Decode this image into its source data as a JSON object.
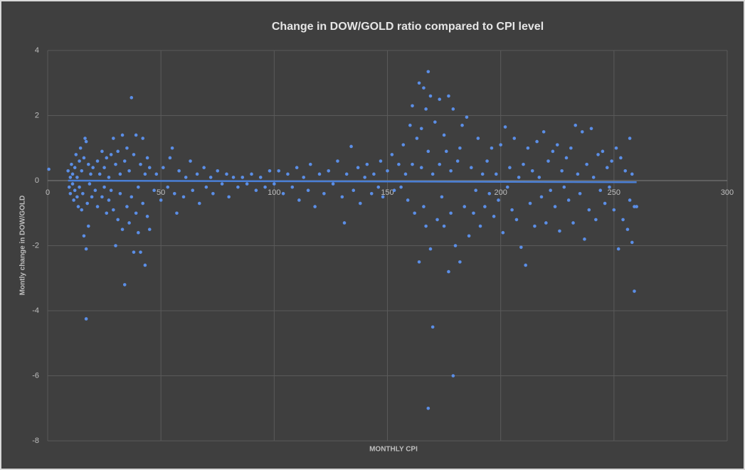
{
  "chart_data": {
    "type": "scatter",
    "title": "Change in DOW/GOLD ratio compared to CPI level",
    "xlabel": "MONTHLY CPI",
    "ylabel": "Montly change in DOW/GOLD",
    "xlim": [
      0,
      300
    ],
    "xticks": [
      0,
      50,
      100,
      150,
      200,
      250,
      300
    ],
    "ylim": [
      -8,
      4
    ],
    "yticks": [
      -8,
      -6,
      -4,
      -2,
      0,
      2,
      4
    ],
    "grid": true,
    "series": [
      {
        "color": "#5b8ee6",
        "x": [
          0.5,
          9,
          9.5,
          10,
          10,
          10.5,
          11,
          11,
          11.5,
          12,
          12,
          12.5,
          13,
          13,
          13.5,
          14,
          14,
          14.5,
          15,
          15,
          15.5,
          16,
          16,
          16.5,
          17,
          17,
          17,
          17.5,
          18,
          18,
          18.5,
          19,
          19.5,
          20,
          21,
          22,
          22,
          23,
          24,
          24,
          25,
          25,
          26,
          26,
          27,
          27,
          28,
          28,
          29,
          29,
          30,
          30,
          31,
          31,
          32,
          32,
          33,
          33,
          34,
          34,
          35,
          35,
          36,
          36,
          37,
          37,
          38,
          38,
          39,
          39,
          40,
          40,
          41,
          41,
          42,
          42,
          43,
          43,
          44,
          44,
          45,
          45,
          47,
          48,
          50,
          51,
          53,
          54,
          55,
          56,
          57,
          58,
          60,
          61,
          63,
          64,
          66,
          67,
          69,
          70,
          72,
          73,
          75,
          77,
          79,
          80,
          82,
          84,
          86,
          88,
          90,
          92,
          94,
          96,
          98,
          100,
          102,
          104,
          106,
          108,
          110,
          111,
          113,
          115,
          116,
          118,
          120,
          122,
          124,
          126,
          128,
          130,
          131,
          132,
          134,
          135,
          137,
          138,
          140,
          141,
          143,
          144,
          146,
          147,
          148,
          150,
          152,
          153,
          155,
          156,
          157,
          158,
          159,
          160,
          161,
          161,
          162,
          163,
          164,
          164,
          165,
          165,
          166,
          166,
          167,
          167,
          168,
          168,
          168,
          169,
          169,
          170,
          170,
          171,
          172,
          173,
          173,
          174,
          175,
          175,
          176,
          177,
          177,
          178,
          178,
          179,
          179,
          180,
          181,
          182,
          182,
          183,
          184,
          185,
          186,
          187,
          188,
          189,
          190,
          191,
          192,
          193,
          194,
          195,
          196,
          197,
          198,
          199,
          200,
          201,
          202,
          203,
          204,
          205,
          206,
          207,
          208,
          209,
          210,
          211,
          212,
          213,
          214,
          215,
          216,
          217,
          218,
          219,
          220,
          221,
          222,
          223,
          224,
          225,
          226,
          227,
          228,
          229,
          230,
          231,
          232,
          233,
          234,
          235,
          236,
          237,
          238,
          239,
          240,
          241,
          242,
          243,
          244,
          245,
          246,
          247,
          248,
          249,
          250,
          251,
          252,
          253,
          254,
          255,
          256,
          257,
          257,
          258,
          258,
          259,
          259,
          260
        ],
        "values": [
          0.35,
          0.3,
          -0.2,
          0.1,
          -0.4,
          0.5,
          -0.1,
          0.2,
          -0.6,
          0.4,
          -0.3,
          0.8,
          -0.5,
          0.1,
          -0.8,
          0.6,
          -0.2,
          1.0,
          -0.9,
          0.3,
          -0.4,
          0.7,
          -1.7,
          1.3,
          -2.1,
          -4.25,
          1.2,
          -0.7,
          0.5,
          -1.4,
          -0.1,
          0.2,
          -0.5,
          0.4,
          -0.3,
          0.6,
          -0.8,
          0.2,
          -0.5,
          0.9,
          -0.2,
          0.4,
          -1.0,
          0.7,
          0.1,
          -0.6,
          0.8,
          -0.3,
          1.3,
          -0.9,
          -2.0,
          0.5,
          -1.2,
          0.9,
          -0.4,
          0.2,
          1.4,
          -1.5,
          -3.2,
          0.6,
          -0.8,
          1.0,
          -1.3,
          0.3,
          2.55,
          -0.5,
          -2.2,
          0.8,
          -1.0,
          1.4,
          -0.2,
          -1.6,
          -2.2,
          0.5,
          1.3,
          -0.7,
          -2.6,
          0.2,
          -1.1,
          0.7,
          -1.5,
          0.4,
          -0.3,
          0.2,
          -0.6,
          0.4,
          -0.2,
          0.7,
          1.0,
          -0.4,
          -1.0,
          0.3,
          -0.5,
          0.1,
          0.6,
          -0.3,
          0.2,
          -0.7,
          0.4,
          -0.2,
          0.1,
          -0.4,
          0.3,
          -0.1,
          0.2,
          -0.5,
          0.1,
          -0.2,
          0.1,
          -0.1,
          0.2,
          -0.3,
          0.1,
          -0.2,
          0.3,
          -0.1,
          0.3,
          -0.4,
          0.2,
          -0.2,
          0.4,
          -0.6,
          0.1,
          -0.3,
          0.5,
          -0.8,
          0.2,
          -0.4,
          0.3,
          -0.1,
          0.6,
          -0.5,
          -1.3,
          0.2,
          1.05,
          -0.3,
          0.4,
          -0.7,
          0.1,
          0.5,
          -0.4,
          0.2,
          -0.2,
          0.6,
          -0.5,
          0.3,
          0.8,
          -0.3,
          0.5,
          -0.2,
          1.1,
          0.2,
          -0.6,
          1.7,
          2.3,
          0.5,
          -1.0,
          1.3,
          3.0,
          -2.5,
          0.4,
          1.6,
          -0.8,
          2.85,
          2.2,
          -1.4,
          3.35,
          -7.0,
          0.9,
          -2.1,
          2.6,
          -4.5,
          0.2,
          1.8,
          -1.2,
          2.5,
          0.5,
          -0.5,
          1.4,
          -1.4,
          0.9,
          -2.8,
          2.6,
          -1.0,
          0.3,
          -6.0,
          2.2,
          -2.0,
          0.6,
          -2.5,
          1.0,
          1.7,
          -0.8,
          1.95,
          -1.7,
          0.4,
          -1.0,
          -0.3,
          1.3,
          -1.4,
          0.2,
          -0.8,
          0.6,
          -0.4,
          1.0,
          -1.1,
          0.2,
          -0.6,
          1.1,
          -1.6,
          1.65,
          -0.2,
          0.4,
          -0.9,
          1.3,
          -1.2,
          0.1,
          -2.05,
          0.5,
          -2.6,
          1.0,
          -0.7,
          0.3,
          -1.4,
          1.2,
          0.1,
          -0.5,
          1.5,
          -1.3,
          0.6,
          -0.3,
          0.9,
          -0.8,
          1.1,
          -1.55,
          0.3,
          -0.2,
          0.7,
          -0.6,
          1.0,
          -1.3,
          1.7,
          0.2,
          -0.4,
          1.5,
          -1.8,
          0.5,
          -0.9,
          1.6,
          0.1,
          -1.2,
          0.8,
          -0.3,
          0.9,
          -0.7,
          0.4,
          -0.2,
          0.6,
          -0.9,
          1.0,
          -2.1,
          0.7,
          -1.2,
          0.3,
          -1.5,
          1.3,
          -0.6,
          -1.9,
          0.2,
          -3.4,
          -0.8,
          -0.8
        ]
      }
    ],
    "trendline": {
      "color": "#4a7fd6",
      "x": [
        9,
        260
      ],
      "y": [
        0,
        -0.05
      ]
    }
  }
}
